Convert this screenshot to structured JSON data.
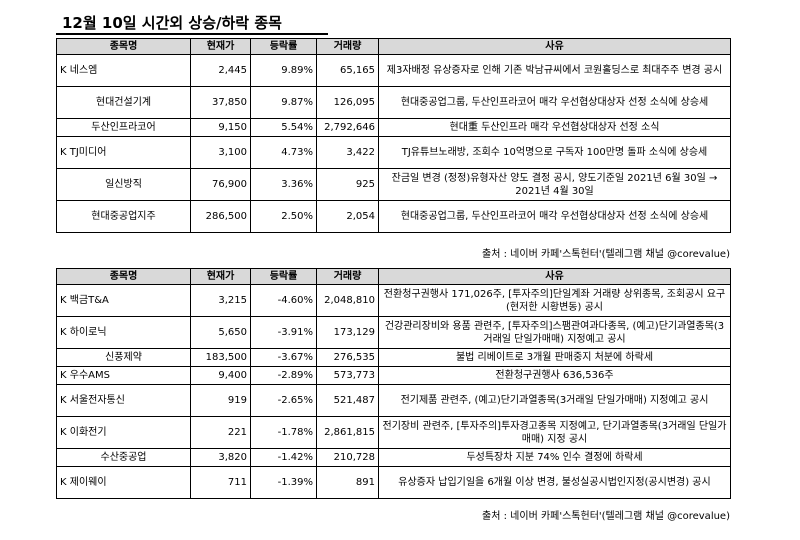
{
  "title": "12월 10일  시간외 상승/하락 종목",
  "headers": {
    "name": "종목명",
    "price": "현재가",
    "rate": "등락률",
    "volume": "거래량",
    "reason": "사유"
  },
  "up": [
    {
      "mark": "K",
      "name": "네스엠",
      "price": "2,445",
      "rate": "9.89%",
      "volume": "65,165",
      "reason": "제3자배정 유상증자로 인해 기존 박남규씨에서 코원홀딩스로 최대주주 변경 공시"
    },
    {
      "mark": "",
      "name": "현대건설기계",
      "price": "37,850",
      "rate": "9.87%",
      "volume": "126,095",
      "reason": "현대중공업그룹, 두산인프라코어 매각 우선협상대상자 선정 소식에 상승세"
    },
    {
      "mark": "",
      "name": "두산인프라코어",
      "price": "9,150",
      "rate": "5.54%",
      "volume": "2,792,646",
      "reason": "현대重 두산인프라 매각 우선협상대상자 선정 소식"
    },
    {
      "mark": "K",
      "name": "TJ미디어",
      "price": "3,100",
      "rate": "4.73%",
      "volume": "3,422",
      "reason": "TJ유튜브노래방, 조회수 10억명으로 구독자 100만명 돌파 소식에 상승세"
    },
    {
      "mark": "",
      "name": "일신방직",
      "price": "76,900",
      "rate": "3.36%",
      "volume": "925",
      "reason": "잔금일 변경 (정정)유형자산 양도 결정 공시, 양도기준일 2021년 6월 30일 → 2021년 4월 30일"
    },
    {
      "mark": "",
      "name": "현대중공업지주",
      "price": "286,500",
      "rate": "2.50%",
      "volume": "2,054",
      "reason": "현대중공업그룹, 두산인프라코어 매각 우선협상대상자 선정 소식에 상승세"
    }
  ],
  "down": [
    {
      "mark": "K",
      "name": "백금T&A",
      "price": "3,215",
      "rate": "-4.60%",
      "volume": "2,048,810",
      "reason": "전환청구권행사 171,026주, [투자주의]단일계좌 거래량 상위종목, 조회공시 요구(현저한 시황변동) 공시"
    },
    {
      "mark": "K",
      "name": "하이로닉",
      "price": "5,650",
      "rate": "-3.91%",
      "volume": "173,129",
      "reason": "건강관리장비와 용품 관련주, [투자주의]스팸관여과다종목, (예고)단기과열종목(3거래일 단일가매매) 지정예고 공시"
    },
    {
      "mark": "",
      "name": "신풍제약",
      "price": "183,500",
      "rate": "-3.67%",
      "volume": "276,535",
      "reason": "불법 리베이트로 3개월 판매중지 처분에 하락세"
    },
    {
      "mark": "K",
      "name": "우수AMS",
      "price": "9,400",
      "rate": "-2.89%",
      "volume": "573,773",
      "reason": "전환청구권행사 636,536주"
    },
    {
      "mark": "K",
      "name": "서울전자통신",
      "price": "919",
      "rate": "-2.65%",
      "volume": "521,487",
      "reason": "전기제품 관련주, (예고)단기과열종목(3거래일 단일가매매) 지정예고 공시"
    },
    {
      "mark": "K",
      "name": "이화전기",
      "price": "221",
      "rate": "-1.78%",
      "volume": "2,861,815",
      "reason": "전기장비 관련주, [투자주의]투자경고종목 지정예고, 단기과열종목(3거래일 단일가매매) 지정 공시"
    },
    {
      "mark": "",
      "name": "수산중공업",
      "price": "3,820",
      "rate": "-1.42%",
      "volume": "210,728",
      "reason": "두성특장차 지분 74% 인수 결정에 하락세"
    },
    {
      "mark": "K",
      "name": "제이웨이",
      "price": "711",
      "rate": "-1.39%",
      "volume": "891",
      "reason": "유상증자 납입기일을 6개월 이상 변경, 불성실공시법인지정(공시변경) 공시"
    }
  ],
  "source": "출처 : 네이버 카페'스톡헌터'(텔레그램 채널 @corevalue)"
}
